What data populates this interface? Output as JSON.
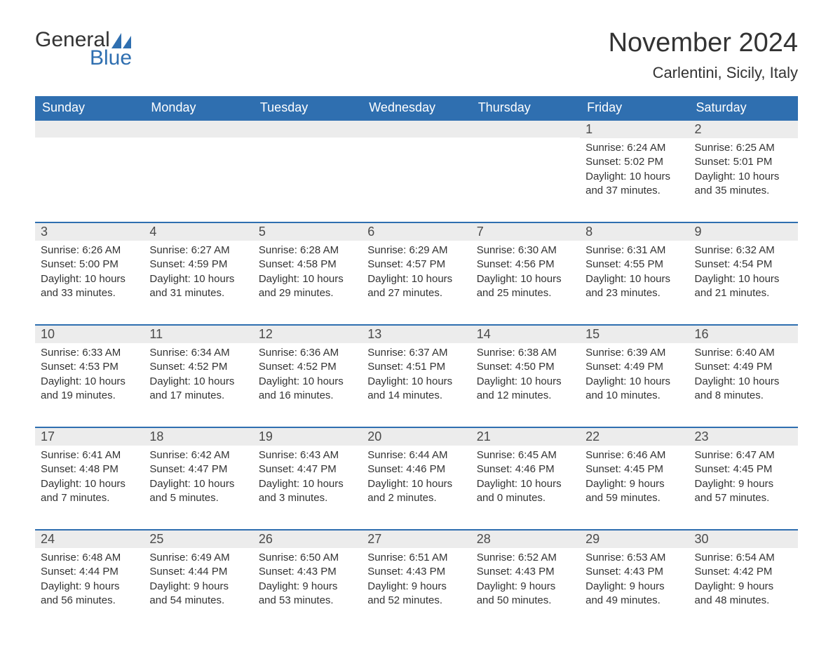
{
  "logo": {
    "text1": "General",
    "text2": "Blue"
  },
  "title": "November 2024",
  "subtitle": "Carlentini, Sicily, Italy",
  "colors": {
    "header_bg": "#2f6fb0",
    "header_fg": "#ffffff",
    "daynum_bg": "#ececec",
    "daynum_border": "#2f6fb0",
    "text": "#333333",
    "logo_blue": "#2f6fb0"
  },
  "fonts": {
    "title_size": 38,
    "subtitle_size": 22,
    "header_size": 18,
    "daynum_size": 18,
    "body_size": 15
  },
  "weekdays": [
    "Sunday",
    "Monday",
    "Tuesday",
    "Wednesday",
    "Thursday",
    "Friday",
    "Saturday"
  ],
  "weeks": [
    [
      null,
      null,
      null,
      null,
      null,
      {
        "d": "1",
        "sr": "6:24 AM",
        "ss": "5:02 PM",
        "dl": "10 hours and 37 minutes."
      },
      {
        "d": "2",
        "sr": "6:25 AM",
        "ss": "5:01 PM",
        "dl": "10 hours and 35 minutes."
      }
    ],
    [
      {
        "d": "3",
        "sr": "6:26 AM",
        "ss": "5:00 PM",
        "dl": "10 hours and 33 minutes."
      },
      {
        "d": "4",
        "sr": "6:27 AM",
        "ss": "4:59 PM",
        "dl": "10 hours and 31 minutes."
      },
      {
        "d": "5",
        "sr": "6:28 AM",
        "ss": "4:58 PM",
        "dl": "10 hours and 29 minutes."
      },
      {
        "d": "6",
        "sr": "6:29 AM",
        "ss": "4:57 PM",
        "dl": "10 hours and 27 minutes."
      },
      {
        "d": "7",
        "sr": "6:30 AM",
        "ss": "4:56 PM",
        "dl": "10 hours and 25 minutes."
      },
      {
        "d": "8",
        "sr": "6:31 AM",
        "ss": "4:55 PM",
        "dl": "10 hours and 23 minutes."
      },
      {
        "d": "9",
        "sr": "6:32 AM",
        "ss": "4:54 PM",
        "dl": "10 hours and 21 minutes."
      }
    ],
    [
      {
        "d": "10",
        "sr": "6:33 AM",
        "ss": "4:53 PM",
        "dl": "10 hours and 19 minutes."
      },
      {
        "d": "11",
        "sr": "6:34 AM",
        "ss": "4:52 PM",
        "dl": "10 hours and 17 minutes."
      },
      {
        "d": "12",
        "sr": "6:36 AM",
        "ss": "4:52 PM",
        "dl": "10 hours and 16 minutes."
      },
      {
        "d": "13",
        "sr": "6:37 AM",
        "ss": "4:51 PM",
        "dl": "10 hours and 14 minutes."
      },
      {
        "d": "14",
        "sr": "6:38 AM",
        "ss": "4:50 PM",
        "dl": "10 hours and 12 minutes."
      },
      {
        "d": "15",
        "sr": "6:39 AM",
        "ss": "4:49 PM",
        "dl": "10 hours and 10 minutes."
      },
      {
        "d": "16",
        "sr": "6:40 AM",
        "ss": "4:49 PM",
        "dl": "10 hours and 8 minutes."
      }
    ],
    [
      {
        "d": "17",
        "sr": "6:41 AM",
        "ss": "4:48 PM",
        "dl": "10 hours and 7 minutes."
      },
      {
        "d": "18",
        "sr": "6:42 AM",
        "ss": "4:47 PM",
        "dl": "10 hours and 5 minutes."
      },
      {
        "d": "19",
        "sr": "6:43 AM",
        "ss": "4:47 PM",
        "dl": "10 hours and 3 minutes."
      },
      {
        "d": "20",
        "sr": "6:44 AM",
        "ss": "4:46 PM",
        "dl": "10 hours and 2 minutes."
      },
      {
        "d": "21",
        "sr": "6:45 AM",
        "ss": "4:46 PM",
        "dl": "10 hours and 0 minutes."
      },
      {
        "d": "22",
        "sr": "6:46 AM",
        "ss": "4:45 PM",
        "dl": "9 hours and 59 minutes."
      },
      {
        "d": "23",
        "sr": "6:47 AM",
        "ss": "4:45 PM",
        "dl": "9 hours and 57 minutes."
      }
    ],
    [
      {
        "d": "24",
        "sr": "6:48 AM",
        "ss": "4:44 PM",
        "dl": "9 hours and 56 minutes."
      },
      {
        "d": "25",
        "sr": "6:49 AM",
        "ss": "4:44 PM",
        "dl": "9 hours and 54 minutes."
      },
      {
        "d": "26",
        "sr": "6:50 AM",
        "ss": "4:43 PM",
        "dl": "9 hours and 53 minutes."
      },
      {
        "d": "27",
        "sr": "6:51 AM",
        "ss": "4:43 PM",
        "dl": "9 hours and 52 minutes."
      },
      {
        "d": "28",
        "sr": "6:52 AM",
        "ss": "4:43 PM",
        "dl": "9 hours and 50 minutes."
      },
      {
        "d": "29",
        "sr": "6:53 AM",
        "ss": "4:43 PM",
        "dl": "9 hours and 49 minutes."
      },
      {
        "d": "30",
        "sr": "6:54 AM",
        "ss": "4:42 PM",
        "dl": "9 hours and 48 minutes."
      }
    ]
  ],
  "labels": {
    "sunrise": "Sunrise: ",
    "sunset": "Sunset: ",
    "daylight": "Daylight: "
  }
}
